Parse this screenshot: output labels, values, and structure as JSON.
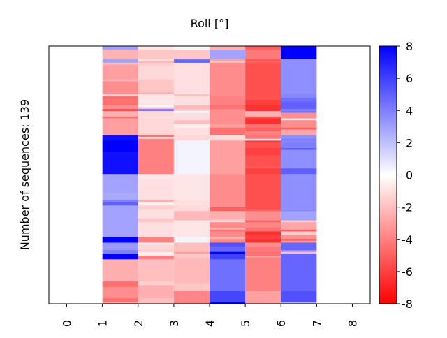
{
  "chart_data": {
    "type": "heatmap",
    "title": "Roll [°]",
    "ylabel": "Number of sequences: 139",
    "xlabel": "",
    "n_rows": 139,
    "xlim": [
      -0.5,
      8.5
    ],
    "x_ticks": [
      "0",
      "1",
      "2",
      "3",
      "4",
      "5",
      "6",
      "7",
      "8"
    ],
    "columns_x_start": [
      1,
      2,
      3,
      4,
      5,
      6
    ],
    "columns_runs": [
      [
        [
          0,
          2.9
        ],
        [
          2,
          -2.4
        ],
        [
          7,
          2.9
        ],
        [
          9,
          -2
        ],
        [
          10,
          -3
        ],
        [
          18,
          -2.4
        ],
        [
          19,
          -3.5
        ],
        [
          26,
          -1.5
        ],
        [
          27,
          -4.5
        ],
        [
          32,
          -3.5
        ],
        [
          34,
          -6
        ],
        [
          35,
          -2.5
        ],
        [
          38,
          -4.5
        ],
        [
          39,
          -3
        ],
        [
          48,
          7.5
        ],
        [
          51,
          8
        ],
        [
          57,
          7.5
        ],
        [
          69,
          2.9
        ],
        [
          79,
          2.7
        ],
        [
          83,
          4
        ],
        [
          84,
          5
        ],
        [
          86,
          2.9
        ],
        [
          103,
          8
        ],
        [
          106,
          3.5
        ],
        [
          107,
          3.2
        ],
        [
          110,
          4
        ],
        [
          112,
          8
        ],
        [
          115,
          -2.5
        ],
        [
          127,
          -4.5
        ],
        [
          130,
          -3.5
        ],
        [
          136,
          -4.5
        ],
        [
          138,
          -3
        ]
      ],
      [
        [
          0,
          -0.8
        ],
        [
          2,
          -1.8
        ],
        [
          7,
          -1
        ],
        [
          8,
          -2.3
        ],
        [
          9,
          -1.5
        ],
        [
          11,
          -1.2
        ],
        [
          18,
          -1.8
        ],
        [
          25,
          -2.5
        ],
        [
          26,
          -0.8
        ],
        [
          32,
          0.3
        ],
        [
          33,
          -2.3
        ],
        [
          34,
          4.5
        ],
        [
          35,
          -1.2
        ],
        [
          38,
          -1
        ],
        [
          39,
          -1.2
        ],
        [
          47,
          -1.5
        ],
        [
          48,
          -4.5
        ],
        [
          49,
          -1
        ],
        [
          50,
          -4
        ],
        [
          69,
          -0.8
        ],
        [
          72,
          -1
        ],
        [
          83,
          -2.5
        ],
        [
          84,
          -0.5
        ],
        [
          86,
          -1.5
        ],
        [
          88,
          -1
        ],
        [
          93,
          -1.8
        ],
        [
          95,
          -1
        ],
        [
          103,
          -4
        ],
        [
          106,
          -0.5
        ],
        [
          107,
          -1.3
        ],
        [
          110,
          -1.7
        ],
        [
          111,
          -0.6
        ],
        [
          113,
          -4
        ],
        [
          115,
          -2
        ],
        [
          127,
          -1.5
        ],
        [
          129,
          -2.5
        ],
        [
          136,
          -2
        ]
      ],
      [
        [
          0,
          -0.3
        ],
        [
          2,
          -1.8
        ],
        [
          7,
          4.5
        ],
        [
          8,
          5
        ],
        [
          9,
          -1
        ],
        [
          26,
          -2
        ],
        [
          27,
          -1
        ],
        [
          32,
          -2.2
        ],
        [
          34,
          -1.5
        ],
        [
          35,
          0.2
        ],
        [
          36,
          -1
        ],
        [
          40,
          -2
        ],
        [
          42,
          -0.6
        ],
        [
          44,
          -1
        ],
        [
          48,
          -1.2
        ],
        [
          51,
          0.35
        ],
        [
          69,
          -0.8
        ],
        [
          83,
          -1
        ],
        [
          86,
          -1.1
        ],
        [
          89,
          -2.2
        ],
        [
          93,
          -2.3
        ],
        [
          94,
          -0.8
        ],
        [
          103,
          0.35
        ],
        [
          106,
          -2
        ],
        [
          111,
          -3
        ],
        [
          112,
          -1.8
        ],
        [
          114,
          -2
        ],
        [
          115,
          -2.2
        ],
        [
          128,
          -1.8
        ],
        [
          132,
          -3.8
        ],
        [
          138,
          -4
        ]
      ],
      [
        [
          0,
          -2.5
        ],
        [
          2,
          2.9
        ],
        [
          7,
          -3
        ],
        [
          8,
          -2
        ],
        [
          9,
          -3.6
        ],
        [
          27,
          -4
        ],
        [
          32,
          -4.5
        ],
        [
          34,
          -3.5
        ],
        [
          42,
          -3
        ],
        [
          44,
          -4.5
        ],
        [
          48,
          -1
        ],
        [
          50,
          -1.5
        ],
        [
          51,
          -3
        ],
        [
          69,
          -3.6
        ],
        [
          87,
          -5
        ],
        [
          89,
          -2.5
        ],
        [
          93,
          -2.2
        ],
        [
          94,
          -1.3
        ],
        [
          95,
          -3.6
        ],
        [
          98,
          -2.5
        ],
        [
          99,
          -4.5
        ],
        [
          100,
          -3.6
        ],
        [
          103,
          -2.5
        ],
        [
          104,
          -3.7
        ],
        [
          106,
          5.5
        ],
        [
          108,
          4.8
        ],
        [
          111,
          8
        ],
        [
          112,
          6
        ],
        [
          115,
          4.5
        ],
        [
          132,
          5.8
        ],
        [
          138,
          8
        ]
      ],
      [
        [
          0,
          -5
        ],
        [
          2,
          -4.2
        ],
        [
          7,
          -5.3
        ],
        [
          8,
          -5
        ],
        [
          9,
          -5.5
        ],
        [
          29,
          -6
        ],
        [
          32,
          -6.5
        ],
        [
          35,
          -2.5
        ],
        [
          38,
          -5.5
        ],
        [
          39,
          -6.5
        ],
        [
          42,
          -4.5
        ],
        [
          44,
          -5
        ],
        [
          46,
          -4
        ],
        [
          48,
          -4.3
        ],
        [
          50,
          -0.8
        ],
        [
          51,
          -6.3
        ],
        [
          52,
          -5.5
        ],
        [
          55,
          -6
        ],
        [
          59,
          -5.5
        ],
        [
          65,
          -5.2
        ],
        [
          66,
          -6
        ],
        [
          69,
          -5.5
        ],
        [
          88,
          -5
        ],
        [
          89,
          -3.5
        ],
        [
          94,
          -5
        ],
        [
          95,
          -3.8
        ],
        [
          98,
          -4.5
        ],
        [
          100,
          -6.5
        ],
        [
          102,
          -6
        ],
        [
          104,
          -6.5
        ],
        [
          106,
          -3.5
        ],
        [
          108,
          -4.2
        ],
        [
          111,
          -4.5
        ],
        [
          113,
          -3
        ],
        [
          114,
          -4
        ],
        [
          132,
          -3
        ]
      ],
      [
        [
          0,
          8
        ],
        [
          7,
          3.5
        ],
        [
          26,
          3.8
        ],
        [
          28,
          4.5
        ],
        [
          30,
          5
        ],
        [
          34,
          3.8
        ],
        [
          35,
          4.5
        ],
        [
          36,
          -3.5
        ],
        [
          39,
          -0.8
        ],
        [
          40,
          -3.5
        ],
        [
          44,
          -5
        ],
        [
          45,
          -2.8
        ],
        [
          48,
          3.5
        ],
        [
          50,
          4
        ],
        [
          51,
          3.8
        ],
        [
          52,
          4
        ],
        [
          55,
          5
        ],
        [
          56,
          3.5
        ],
        [
          66,
          5
        ],
        [
          69,
          3.5
        ],
        [
          88,
          3.8
        ],
        [
          89,
          2.9
        ],
        [
          93,
          3
        ],
        [
          94,
          -1.5
        ],
        [
          95,
          -2.8
        ],
        [
          99,
          -5
        ],
        [
          100,
          -1.5
        ],
        [
          102,
          -3.5
        ],
        [
          104,
          -5
        ],
        [
          105,
          -3
        ],
        [
          106,
          4.8
        ],
        [
          110,
          3.5
        ],
        [
          111,
          -2
        ],
        [
          112,
          4.8
        ],
        [
          132,
          5.5
        ],
        [
          138,
          2.5
        ]
      ]
    ],
    "colorbar": {
      "colormap": "bwr",
      "vmin": -8,
      "vmax": 8,
      "ticks": [
        "8",
        "6",
        "4",
        "2",
        "0",
        "-2",
        "-4",
        "-6",
        "-8"
      ],
      "low_color": "#ff0000",
      "mid_color": "#ffffff",
      "high_color": "#0000ff"
    }
  }
}
